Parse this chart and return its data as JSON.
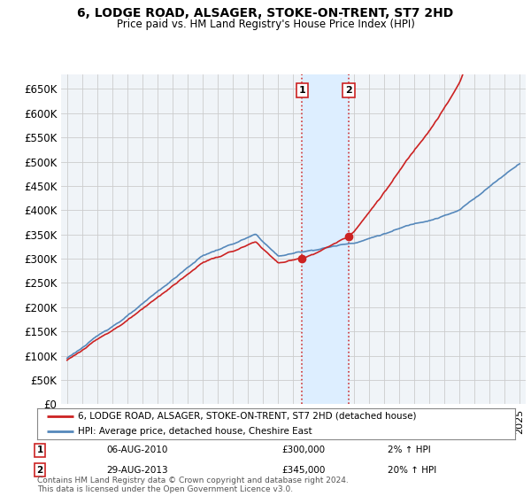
{
  "title": "6, LODGE ROAD, ALSAGER, STOKE-ON-TRENT, ST7 2HD",
  "subtitle": "Price paid vs. HM Land Registry's House Price Index (HPI)",
  "ylim": [
    0,
    680000
  ],
  "yticks": [
    0,
    50000,
    100000,
    150000,
    200000,
    250000,
    300000,
    350000,
    400000,
    450000,
    500000,
    550000,
    600000,
    650000
  ],
  "ytick_labels": [
    "£0",
    "£50K",
    "£100K",
    "£150K",
    "£200K",
    "£250K",
    "£300K",
    "£350K",
    "£400K",
    "£450K",
    "£500K",
    "£550K",
    "£600K",
    "£650K"
  ],
  "hpi_color": "#5588bb",
  "price_color": "#cc2222",
  "shade_color": "#ddeeff",
  "sale1_date": 2010.58,
  "sale1_price": 300000,
  "sale2_date": 2013.66,
  "sale2_price": 345000,
  "legend_line1": "6, LODGE ROAD, ALSAGER, STOKE-ON-TRENT, ST7 2HD (detached house)",
  "legend_line2": "HPI: Average price, detached house, Cheshire East",
  "annotation1_label": "1",
  "annotation1_date": "06-AUG-2010",
  "annotation1_price": "£300,000",
  "annotation1_pct": "2% ↑ HPI",
  "annotation2_label": "2",
  "annotation2_date": "29-AUG-2013",
  "annotation2_price": "£345,000",
  "annotation2_pct": "20% ↑ HPI",
  "footer": "Contains HM Land Registry data © Crown copyright and database right 2024.\nThis data is licensed under the Open Government Licence v3.0.",
  "background_color": "#f0f4f8",
  "grid_color": "#cccccc",
  "xlim_left": 1994.6,
  "xlim_right": 2025.4
}
